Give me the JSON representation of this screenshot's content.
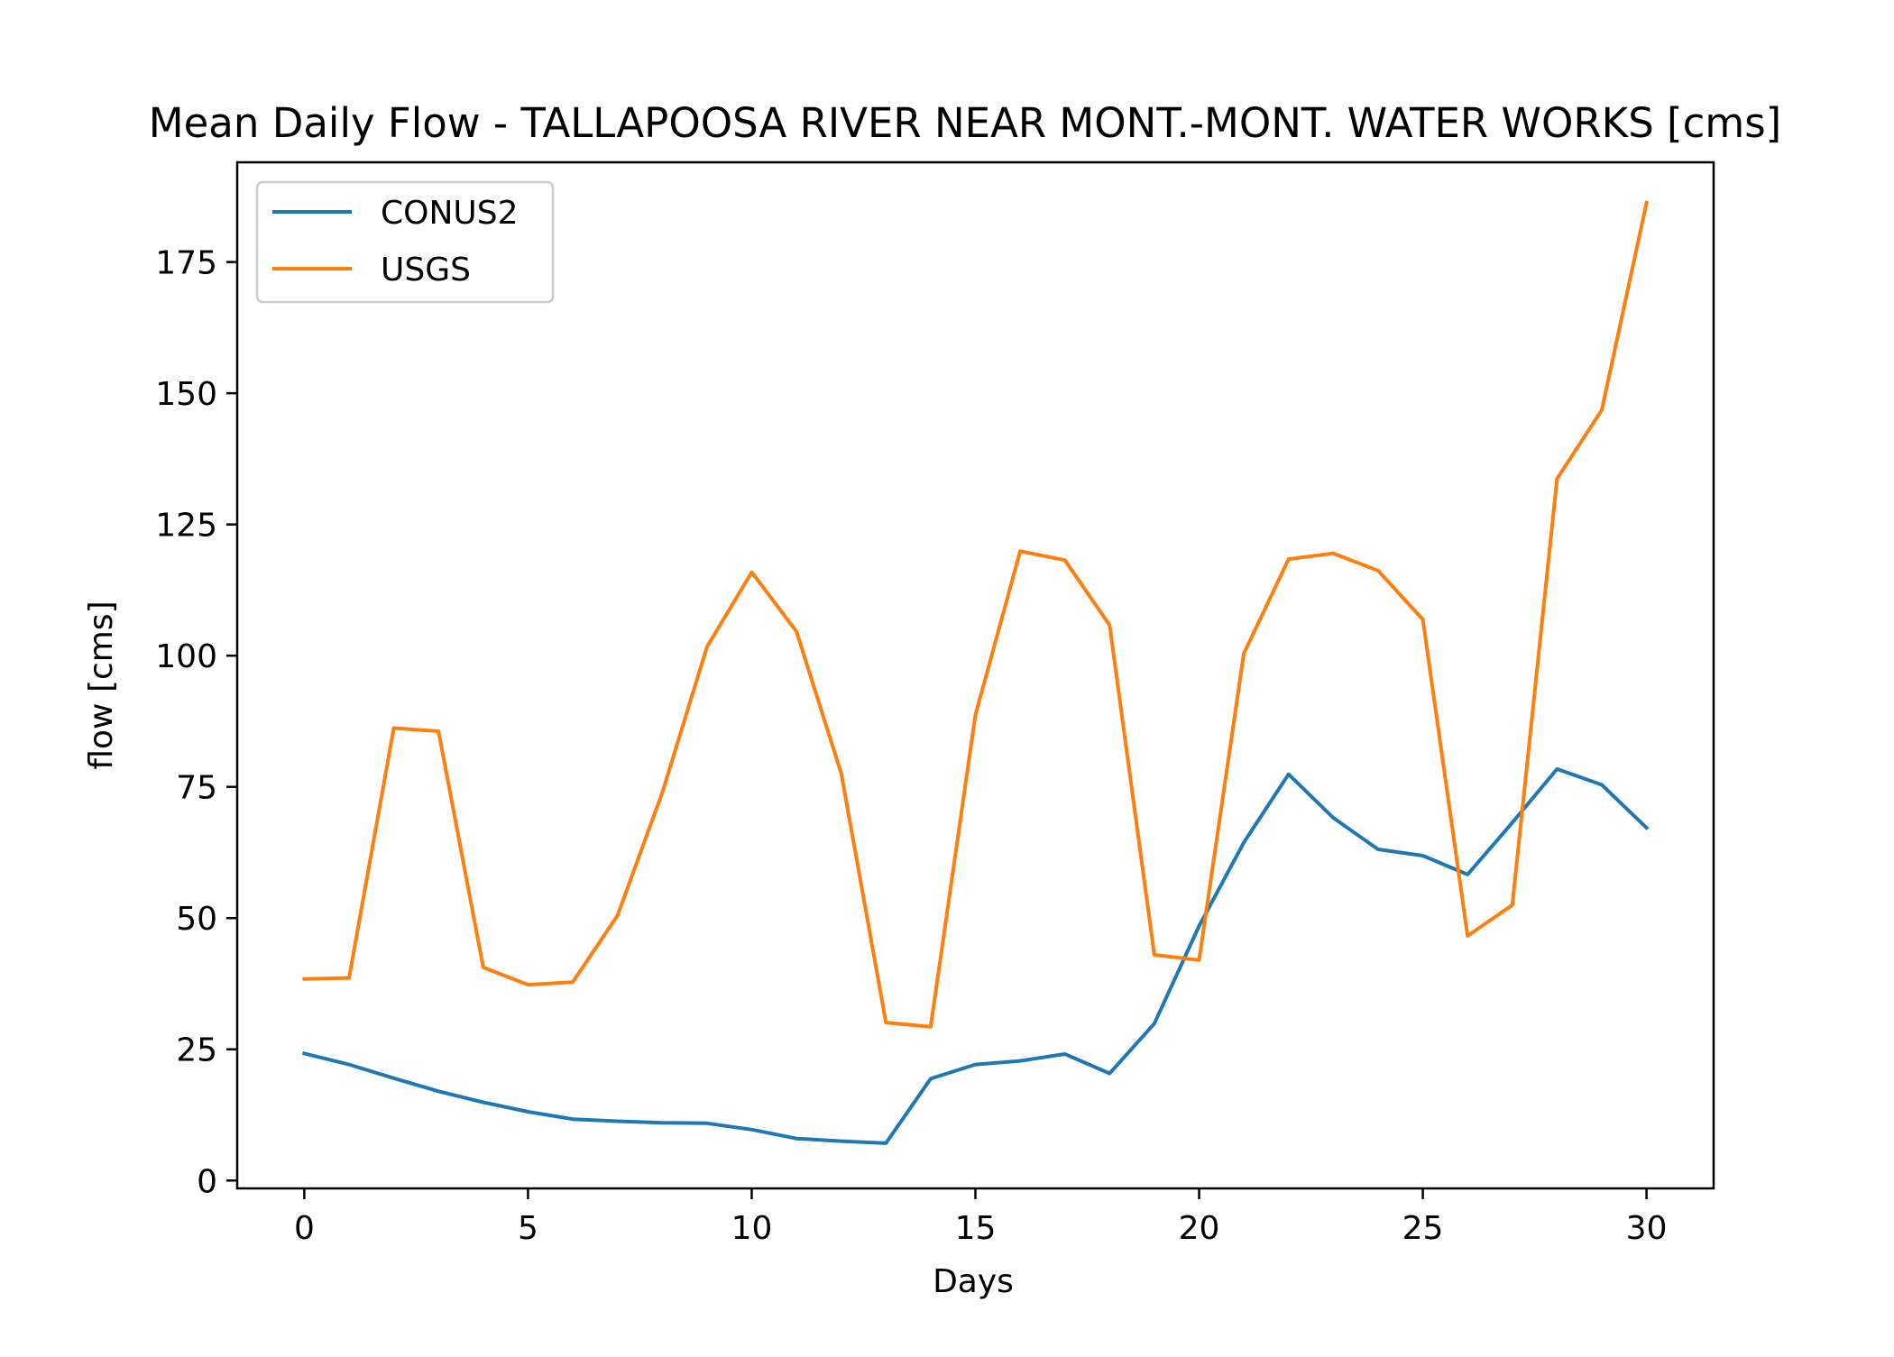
{
  "chart_data": {
    "type": "line",
    "title": "Mean Daily Flow - TALLAPOOSA RIVER NEAR MONT.-MONT. WATER WORKS [cms]",
    "xlabel": "Days",
    "ylabel": "flow [cms]",
    "xlim": [
      -1.5,
      31.5
    ],
    "ylim": [
      -1.5,
      194
    ],
    "xticks": [
      0,
      5,
      10,
      15,
      20,
      25,
      30
    ],
    "yticks": [
      0,
      25,
      50,
      75,
      100,
      125,
      150,
      175
    ],
    "grid": false,
    "legend_position": "upper-left",
    "x": [
      0,
      1,
      2,
      3,
      4,
      5,
      6,
      7,
      8,
      9,
      10,
      11,
      12,
      13,
      14,
      15,
      16,
      17,
      18,
      19,
      20,
      21,
      22,
      23,
      24,
      25,
      26,
      27,
      28,
      29,
      30
    ],
    "series": [
      {
        "name": "CONUS2",
        "color": "#1f77b4",
        "values": [
          24.2,
          22.1,
          19.5,
          17.0,
          14.9,
          13.1,
          11.7,
          11.3,
          11.0,
          10.9,
          9.7,
          8.0,
          7.5,
          7.1,
          19.4,
          22.1,
          22.8,
          24.1,
          20.4,
          29.9,
          48.5,
          64.4,
          77.4,
          69.1,
          63.1,
          61.9,
          58.3,
          68.2,
          78.4,
          75.4,
          67.2
        ]
      },
      {
        "name": "USGS",
        "color": "#ff7f0e",
        "values": [
          38.4,
          38.6,
          86.2,
          85.6,
          40.6,
          37.3,
          37.8,
          50.5,
          73.9,
          101.7,
          115.9,
          104.6,
          77.6,
          30.1,
          29.3,
          88.7,
          119.9,
          118.2,
          105.8,
          43.0,
          42.0,
          100.4,
          118.4,
          119.5,
          116.2,
          106.9,
          46.6,
          52.5,
          133.7,
          146.8,
          186.3
        ]
      }
    ]
  }
}
